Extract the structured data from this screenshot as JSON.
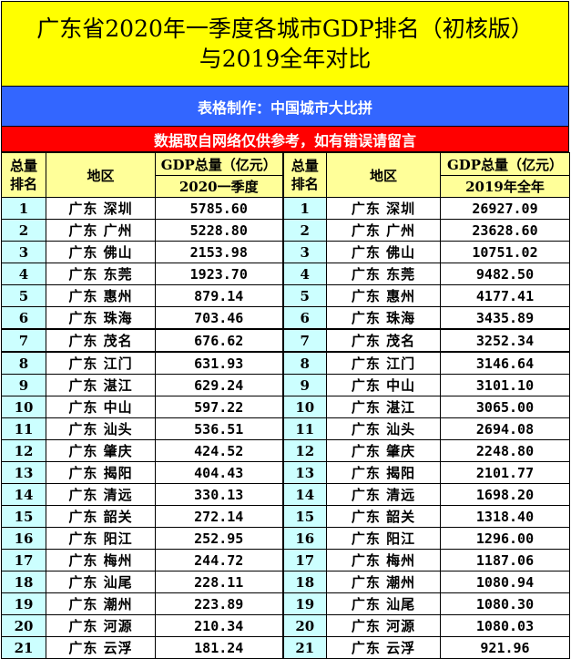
{
  "title": {
    "line1": "广东省2020年一季度各城市GDP排名（初核版）",
    "line2": "与2019全年对比"
  },
  "credit": "表格制作：中国城市大比拼",
  "note": "数据取自网络仅供参考，如有错误请留言",
  "colors": {
    "title_bg": "#ffff00",
    "credit_bg": "#3366ff",
    "note_bg": "#ff0000",
    "header_bg": "#ffff99",
    "rank_bg": "#ccffff"
  },
  "headers": {
    "rank": "总量排名",
    "region": "地区",
    "gdp": "GDP总量（亿元）",
    "period_left": "2020一季度",
    "period_right": "2019年全年"
  },
  "left": [
    [
      "1",
      "广东 深圳",
      "5785.60"
    ],
    [
      "2",
      "广东 广州",
      "5228.80"
    ],
    [
      "3",
      "广东 佛山",
      "2153.98"
    ],
    [
      "4",
      "广东 东莞",
      "1923.70"
    ],
    [
      "5",
      "广东 惠州",
      "879.14"
    ],
    [
      "6",
      "广东 珠海",
      "703.46"
    ],
    [
      "7",
      "广东 茂名",
      "676.62"
    ],
    [
      "8",
      "广东 江门",
      "631.93"
    ],
    [
      "9",
      "广东 湛江",
      "629.24"
    ],
    [
      "10",
      "广东 中山",
      "597.22"
    ],
    [
      "11",
      "广东 汕头",
      "536.51"
    ],
    [
      "12",
      "广东 肇庆",
      "424.52"
    ],
    [
      "13",
      "广东 揭阳",
      "404.43"
    ],
    [
      "14",
      "广东 清远",
      "330.13"
    ],
    [
      "15",
      "广东 韶关",
      "272.14"
    ],
    [
      "16",
      "广东 阳江",
      "252.95"
    ],
    [
      "17",
      "广东 梅州",
      "244.72"
    ],
    [
      "18",
      "广东 汕尾",
      "228.11"
    ],
    [
      "19",
      "广东 潮州",
      "223.89"
    ],
    [
      "20",
      "广东 河源",
      "210.34"
    ],
    [
      "21",
      "广东 云浮",
      "181.24"
    ]
  ],
  "right": [
    [
      "1",
      "广东 深圳",
      "26927.09"
    ],
    [
      "2",
      "广东 广州",
      "23628.60"
    ],
    [
      "3",
      "广东 佛山",
      "10751.02"
    ],
    [
      "4",
      "广东 东莞",
      "9482.50"
    ],
    [
      "5",
      "广东 惠州",
      "4177.41"
    ],
    [
      "6",
      "广东 珠海",
      "3435.89"
    ],
    [
      "7",
      "广东 茂名",
      "3252.34"
    ],
    [
      "8",
      "广东 江门",
      "3146.64"
    ],
    [
      "9",
      "广东 中山",
      "3101.10"
    ],
    [
      "10",
      "广东 湛江",
      "3065.00"
    ],
    [
      "11",
      "广东 汕头",
      "2694.08"
    ],
    [
      "12",
      "广东 肇庆",
      "2248.80"
    ],
    [
      "13",
      "广东 揭阳",
      "2101.77"
    ],
    [
      "14",
      "广东 清远",
      "1698.20"
    ],
    [
      "15",
      "广东 韶关",
      "1318.40"
    ],
    [
      "16",
      "广东 阳江",
      "1296.00"
    ],
    [
      "17",
      "广东 梅州",
      "1187.06"
    ],
    [
      "18",
      "广东 潮州",
      "1080.94"
    ],
    [
      "19",
      "广东 汕尾",
      "1080.30"
    ],
    [
      "20",
      "广东 河源",
      "1080.03"
    ],
    [
      "21",
      "广东 云浮",
      "921.96"
    ]
  ]
}
